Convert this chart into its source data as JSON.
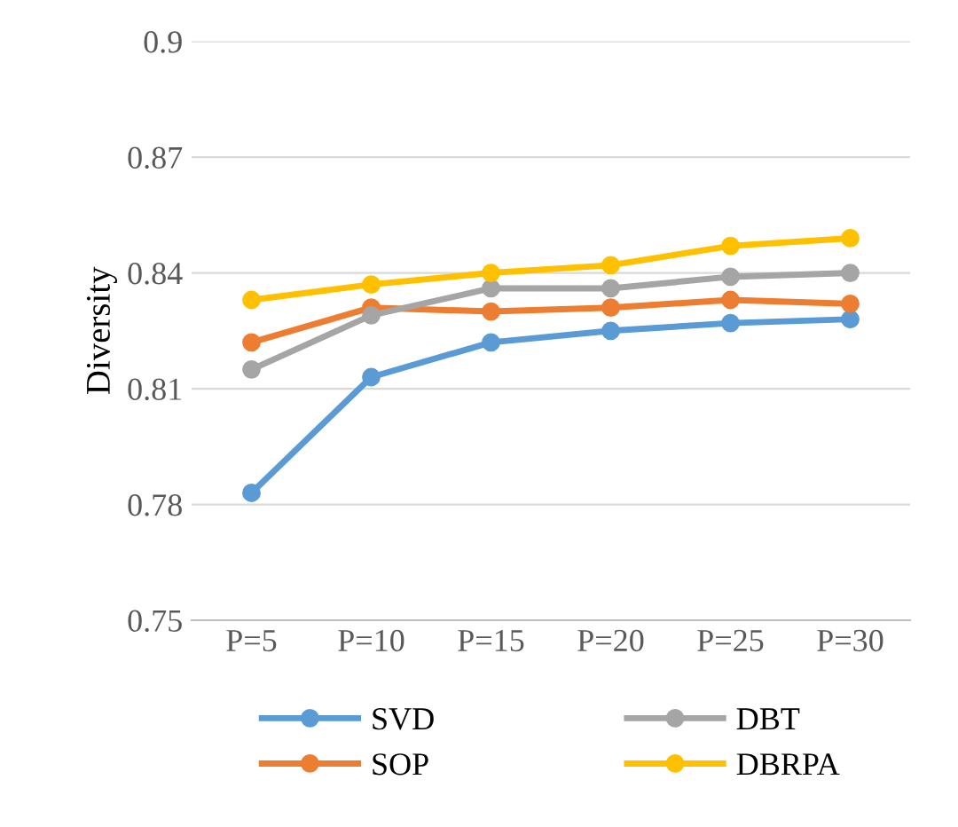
{
  "chart_data": {
    "type": "line",
    "ylabel": "Diversity",
    "categories": [
      "P=5",
      "P=10",
      "P=15",
      "P=20",
      "P=25",
      "P=30"
    ],
    "series": [
      {
        "name": "SVD",
        "color": "#5b9bd5",
        "values": [
          0.783,
          0.813,
          0.822,
          0.825,
          0.827,
          0.828
        ]
      },
      {
        "name": "SOP",
        "color": "#ed7d31",
        "values": [
          0.822,
          0.831,
          0.83,
          0.831,
          0.833,
          0.832
        ]
      },
      {
        "name": "DBT",
        "color": "#a5a5a5",
        "values": [
          0.815,
          0.829,
          0.836,
          0.836,
          0.839,
          0.84
        ]
      },
      {
        "name": "DBRPA",
        "color": "#ffc000",
        "values": [
          0.833,
          0.837,
          0.84,
          0.842,
          0.847,
          0.849
        ]
      }
    ],
    "ylim": [
      0.75,
      0.9
    ],
    "yticks": [
      0.75,
      0.78,
      0.81,
      0.84,
      0.87,
      0.9
    ],
    "grid": "y",
    "legend": "bottom",
    "marker": "circle",
    "line_style": "solid"
  }
}
